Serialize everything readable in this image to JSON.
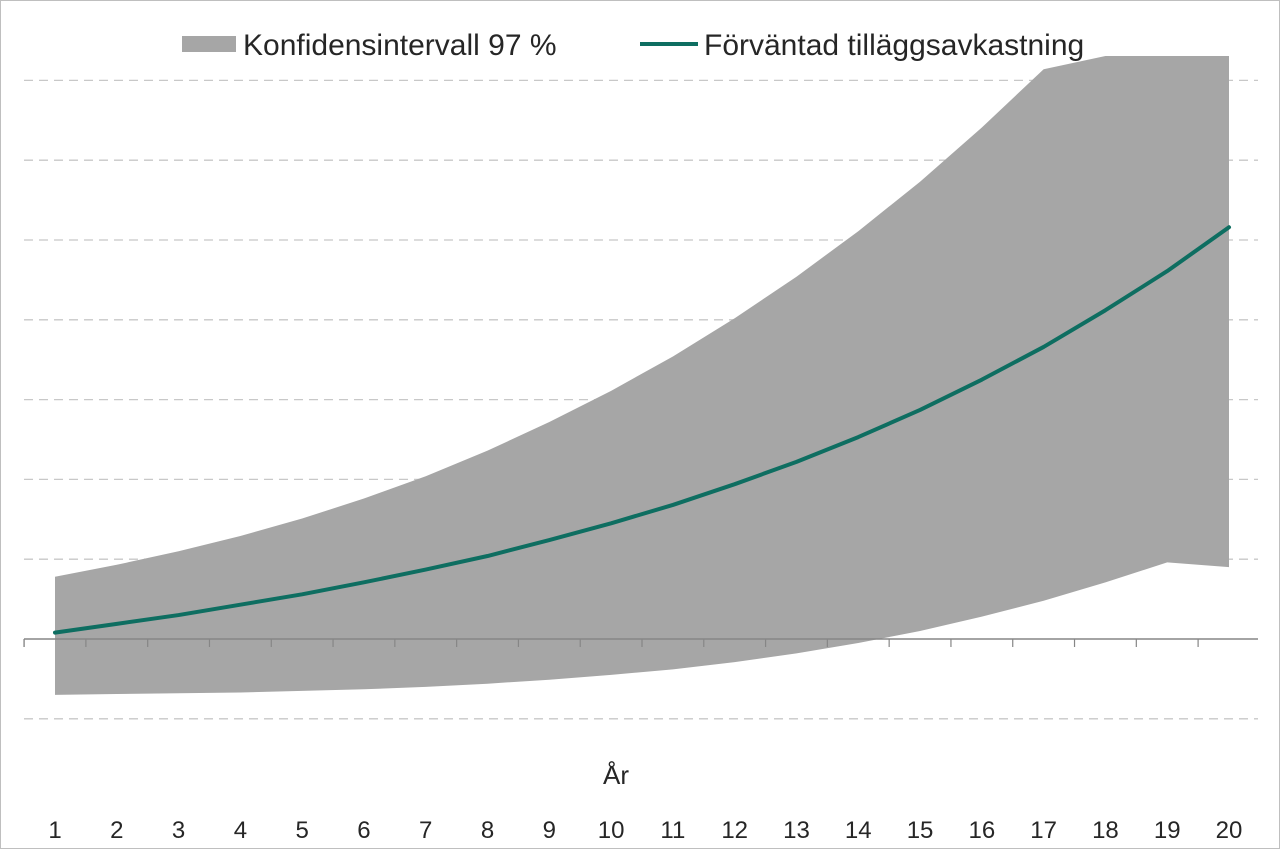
{
  "chart_data": {
    "type": "area",
    "x": [
      1,
      2,
      3,
      4,
      5,
      6,
      7,
      8,
      9,
      10,
      11,
      12,
      13,
      14,
      15,
      16,
      17,
      18,
      19,
      20
    ],
    "categories": [
      "1",
      "2",
      "3",
      "4",
      "5",
      "6",
      "7",
      "8",
      "9",
      "10",
      "11",
      "12",
      "13",
      "14",
      "15",
      "16",
      "17",
      "18",
      "19",
      "20"
    ],
    "xlabel": "År",
    "ylabel": "",
    "ylim": [
      -1,
      7
    ],
    "y_tick_labels_shown": false,
    "grid": true,
    "legend": "top",
    "series": [
      {
        "name": "Konfidensintervall 97 %",
        "kind": "band",
        "color": "#a6a6a6",
        "lower": [
          -0.7,
          -0.69,
          -0.68,
          -0.67,
          -0.65,
          -0.63,
          -0.6,
          -0.56,
          -0.51,
          -0.45,
          -0.38,
          -0.29,
          -0.18,
          -0.05,
          0.1,
          0.28,
          0.48,
          0.71,
          0.96,
          0.9
        ],
        "upper": [
          0.78,
          0.93,
          1.1,
          1.29,
          1.51,
          1.76,
          2.04,
          2.36,
          2.72,
          3.11,
          3.54,
          4.02,
          4.54,
          5.11,
          5.73,
          6.41,
          7.14,
          7.93,
          8.78,
          9.7
        ]
      },
      {
        "name": "Förväntad tilläggsavkastning",
        "kind": "line",
        "color": "#0e6e61",
        "values": [
          0.08,
          0.19,
          0.3,
          0.43,
          0.56,
          0.71,
          0.87,
          1.04,
          1.24,
          1.45,
          1.68,
          1.94,
          2.22,
          2.53,
          2.87,
          3.25,
          3.66,
          4.12,
          4.61,
          5.16
        ]
      }
    ]
  },
  "colors": {
    "band": "#a6a6a6",
    "line": "#0e6e61",
    "grid": "#c8c8c8",
    "axis": "#868686",
    "text": "#262626"
  }
}
